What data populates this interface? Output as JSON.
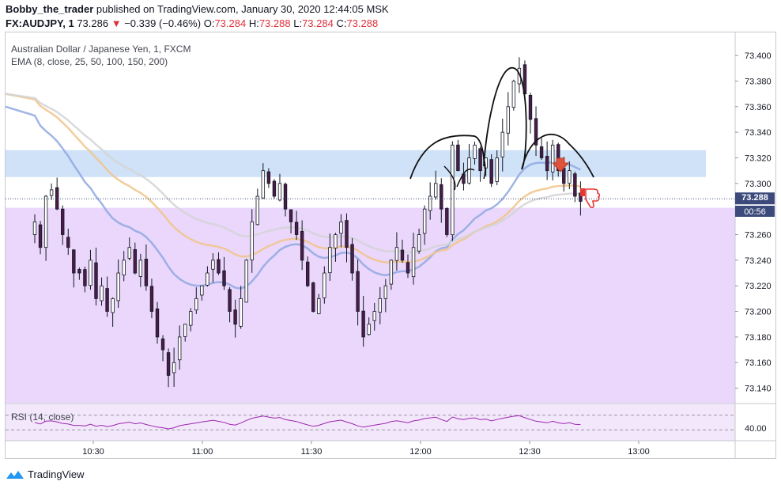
{
  "header": {
    "author": "Bobby_the_trader",
    "published_text": "published on TradingView.com, January 30, 2020 12:44:05 MSK",
    "symbol": "FX:AUDJPY, 1",
    "last_price": "73.286",
    "change_arrow": "▼",
    "change": "−0.339 (−0.46%)",
    "o_label": "O:",
    "o_value": "73.284",
    "h_label": "H:",
    "h_value": "73.288",
    "l_label": "L:",
    "l_value": "73.284",
    "c_label": "C:",
    "c_value": "73.288"
  },
  "legend": {
    "instrument": "Australian Dollar / Japanese Yen, 1, FXCM",
    "ema": "EMA (8, close, 25, 50, 100, 150, 200)",
    "rsi": "RSI (14, close)"
  },
  "price_label": "73.288",
  "countdown_label": "00:56",
  "rsi_axis_label": "40.00",
  "footer": {
    "brand": "TradingView"
  },
  "colors": {
    "bullish_candle": "#ffffff",
    "bearish_candle": "#4a1c4a",
    "candle_outline": "#131722",
    "resistance_zone": "#cfe2f8",
    "support_zone": "#ead7fb",
    "ema_fast": "#8fa8e0",
    "ema_mid": "#f0c48a",
    "ema_slow": "#d3d3d6",
    "rsi_line": "#9c27b0",
    "price_label_bg": "#3b4a7a",
    "down_arrow": "#e0533b"
  },
  "chart_data": {
    "type": "candlestick",
    "interval": "1",
    "x_ticks": [
      "10:30",
      "11:00",
      "11:30",
      "12:00",
      "12:30",
      "13:00"
    ],
    "y_ticks": [
      "73.400",
      "73.380",
      "73.360",
      "73.340",
      "73.320",
      "73.300",
      "73.280",
      "73.260",
      "73.240",
      "73.220",
      "73.200",
      "73.180",
      "73.160",
      "73.140"
    ],
    "ylim": [
      73.128,
      73.418
    ],
    "time_range": [
      "10:15",
      "13:10"
    ],
    "close": [
      73.27,
      73.25,
      73.29,
      73.295,
      73.28,
      73.26,
      73.25,
      73.23,
      73.23,
      73.22,
      73.24,
      73.21,
      73.22,
      73.2,
      73.21,
      73.23,
      73.24,
      73.25,
      73.23,
      73.24,
      73.22,
      73.2,
      73.18,
      73.17,
      73.15,
      73.16,
      73.18,
      73.19,
      73.2,
      73.21,
      73.22,
      73.23,
      73.24,
      73.23,
      73.22,
      73.2,
      73.19,
      73.21,
      73.24,
      73.27,
      73.29,
      73.31,
      73.3,
      73.29,
      73.3,
      73.28,
      73.27,
      73.26,
      73.24,
      73.22,
      73.2,
      73.21,
      73.23,
      73.25,
      73.26,
      73.27,
      73.25,
      73.23,
      73.2,
      73.18,
      73.19,
      73.2,
      73.21,
      73.22,
      73.24,
      73.25,
      73.24,
      73.23,
      73.25,
      73.26,
      73.28,
      73.29,
      73.3,
      73.28,
      73.26,
      73.33,
      73.31,
      73.3,
      73.32,
      73.33,
      73.31,
      73.32,
      73.3,
      73.32,
      73.34,
      73.36,
      73.38,
      73.39,
      73.37,
      73.35,
      73.33,
      73.32,
      73.31,
      73.33,
      73.31,
      73.3,
      73.31,
      73.29,
      73.286
    ],
    "rsi": {
      "name": "RSI (14, close)",
      "levels": [
        70,
        30
      ],
      "axis_label": 40.0
    },
    "ema_periods": [
      8,
      25,
      50,
      100,
      150,
      200
    ],
    "zones": [
      {
        "from": 73.305,
        "to": 73.326
      },
      {
        "from": 73.128,
        "to": 73.281
      }
    ],
    "last_price": 73.288
  }
}
